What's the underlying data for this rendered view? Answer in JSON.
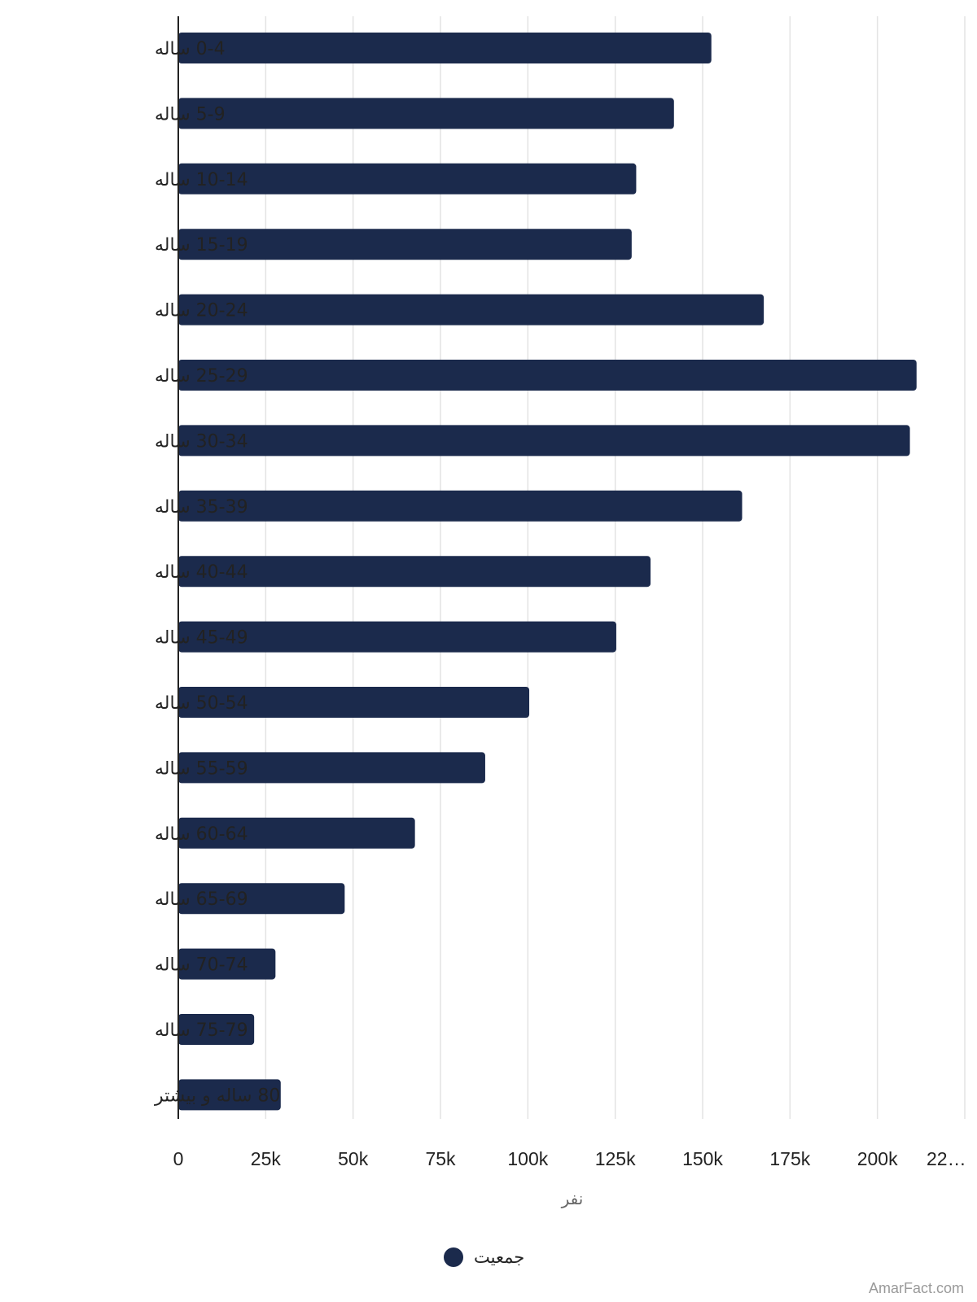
{
  "chart_data": {
    "type": "bar",
    "orientation": "horizontal",
    "categories": [
      "0-4 ساله",
      "5-9 ساله",
      "10-14 ساله",
      "15-19 ساله",
      "20-24 ساله",
      "25-29 ساله",
      "30-34 ساله",
      "35-39 ساله",
      "40-44 ساله",
      "45-49 ساله",
      "50-54 ساله",
      "55-59 ساله",
      "60-64 ساله",
      "65-69 ساله",
      "70-74 ساله",
      "75-79 ساله",
      "80 ساله و بیشتر"
    ],
    "series": [
      {
        "name": "جمعیت",
        "color": "#1b2a4c",
        "values": [
          152500,
          141800,
          131000,
          129700,
          167500,
          211200,
          209300,
          161300,
          135100,
          125300,
          100400,
          87800,
          67700,
          47600,
          27800,
          21700,
          29300
        ]
      }
    ],
    "x_ticks": [
      "0",
      "25k",
      "50k",
      "75k",
      "100k",
      "125k",
      "150k",
      "175k",
      "200k",
      "22…"
    ],
    "xlim": [
      0,
      225000
    ],
    "xlabel": "نفر",
    "ylabel": "",
    "grid": "vertical",
    "legend": "bottom-center"
  },
  "watermark": "AmarFact.com",
  "colors": {
    "bar": "#1b2a4c",
    "grid": "#e3e3e3",
    "axis": "#222222"
  }
}
